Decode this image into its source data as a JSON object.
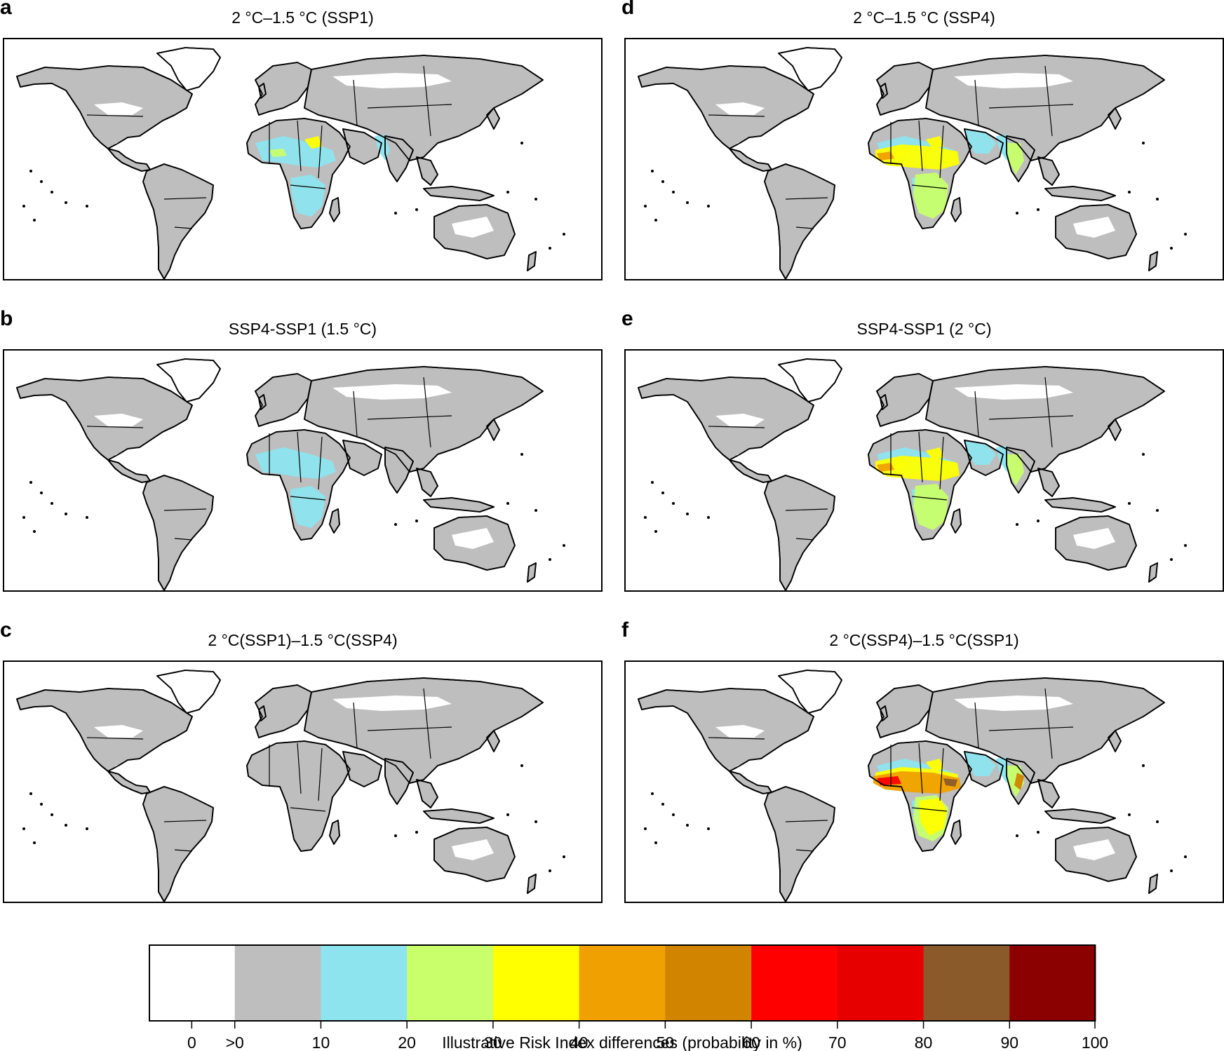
{
  "panels": [
    {
      "letter": "a",
      "title": "2 °C–1.5 °C (SSP1)",
      "intensity": 1
    },
    {
      "letter": "b",
      "title": "SSP4-SSP1 (1.5 °C)",
      "intensity": 0.5
    },
    {
      "letter": "c",
      "title": "2 °C(SSP1)–1.5 °C(SSP4)",
      "intensity": 0
    },
    {
      "letter": "d",
      "title": "2 °C–1.5 °C (SSP4)",
      "intensity": 2
    },
    {
      "letter": "e",
      "title": "SSP4-SSP1 (2 °C)",
      "intensity": 2
    },
    {
      "letter": "f",
      "title": "2 °C(SSP4)–1.5 °C(SSP1)",
      "intensity": 3
    }
  ],
  "legend": {
    "title": "Illustrative Risk Index differences (probability in %)",
    "tick_labels": [
      "0",
      ">0",
      "10",
      "20",
      "30",
      "40",
      "50",
      "60",
      "70",
      "80",
      "90",
      "100"
    ],
    "colors": [
      "#ffffff",
      "#bebebe",
      "#8de4ee",
      "#c8ff6a",
      "#ffff00",
      "#f0a000",
      "#d08400",
      "#ff0000",
      "#e60000",
      "#8b5a2b",
      "#8b0000"
    ]
  },
  "map_colors": {
    "land": "#bebebe",
    "no_change": "#ffffff",
    "outline": "#000000"
  }
}
